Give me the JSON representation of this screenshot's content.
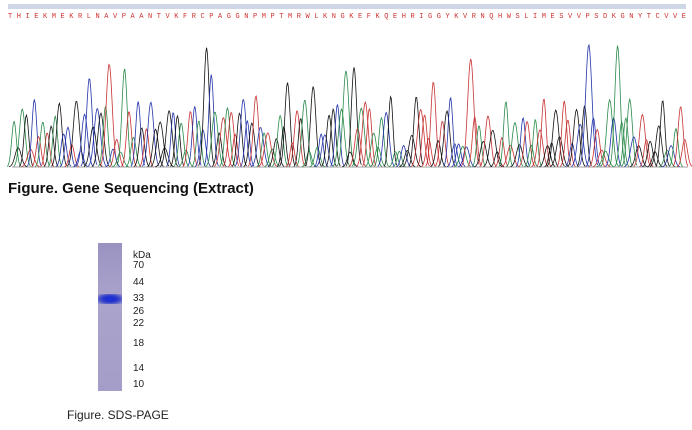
{
  "sequencing": {
    "protein_sequence": "T H I E K M E K R L N A V P A A N T V K F R C P A G G N P M P T M R W L K N G K E F K Q E H R I G G Y K V R N Q H W S L I M E S V V P S D K G N Y T C V V E",
    "caption": "Figure. Gene Sequencing (Extract)"
  },
  "gel": {
    "unit": "kDa",
    "markers": [
      "70",
      "44",
      "33",
      "26",
      "22",
      "18",
      "14",
      "10"
    ],
    "caption": "Figure. SDS-PAGE"
  }
}
